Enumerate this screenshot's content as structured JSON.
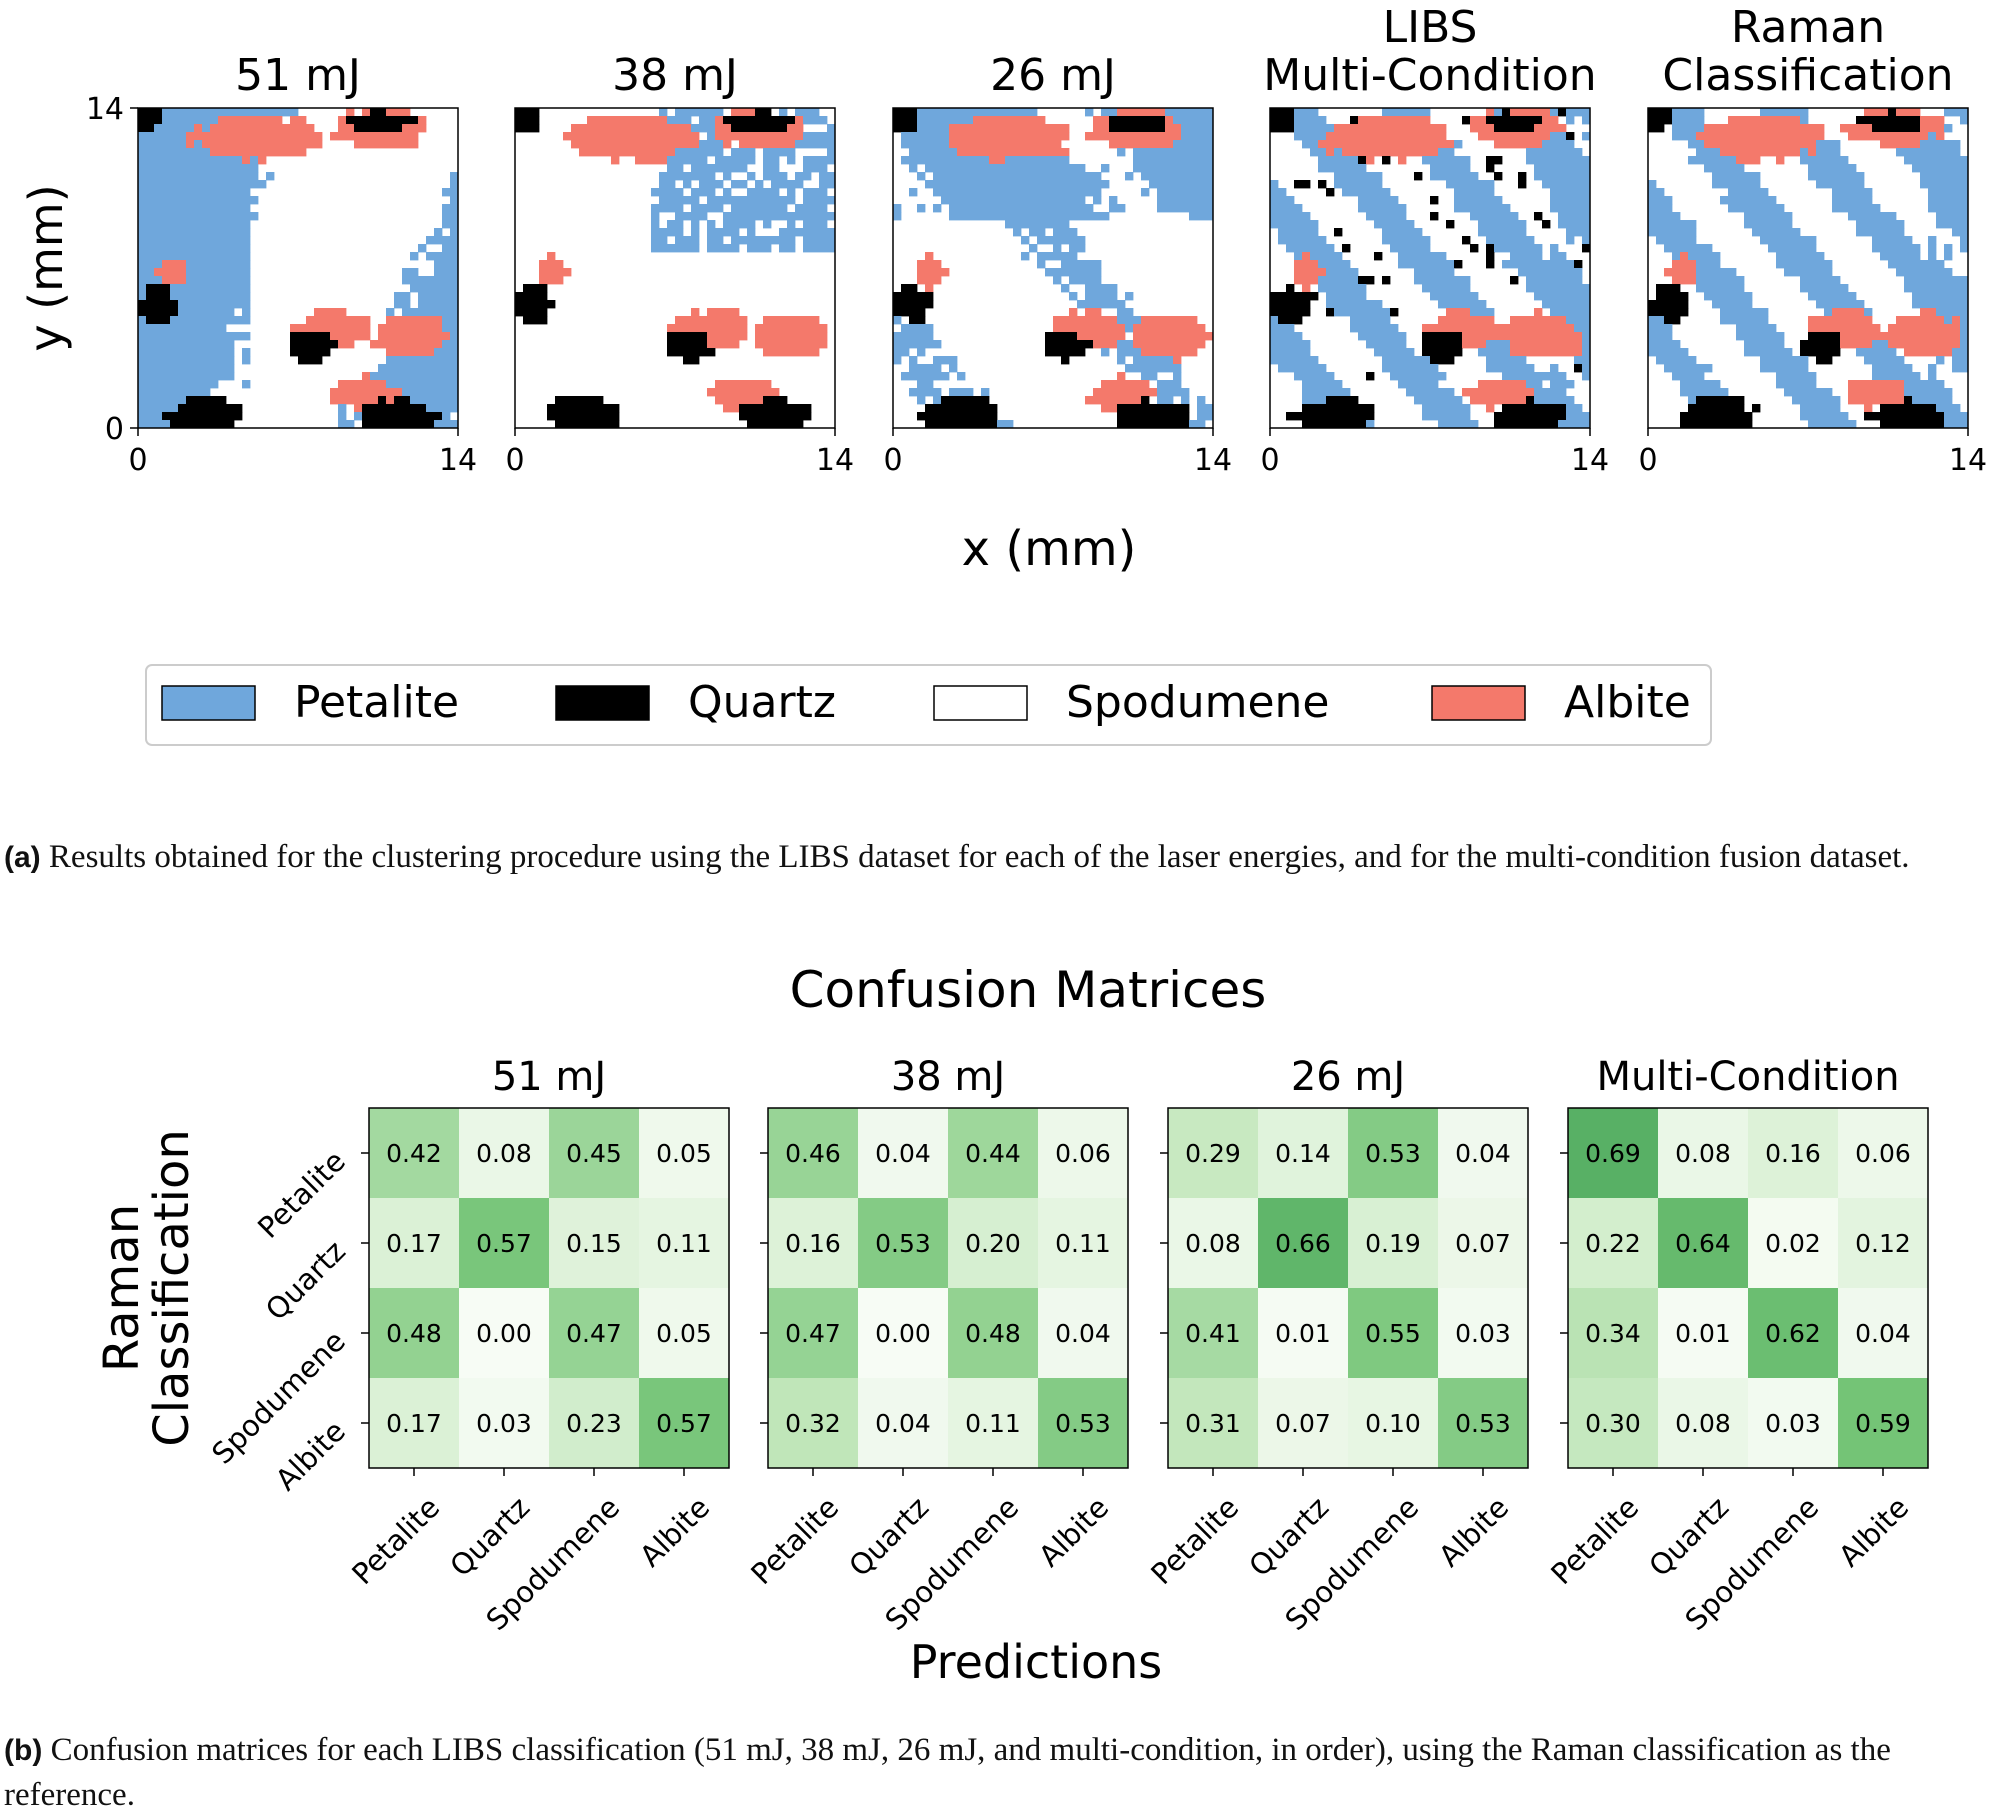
{
  "panel_a": {
    "map_titles": [
      "51 mJ",
      "38 mJ",
      "26 mJ",
      "LIBS\nMulti-Condition",
      "Raman\nClassification"
    ],
    "x_axis_label": "x (mm)",
    "y_axis_label": "y (mm)",
    "axis_min": "0",
    "axis_max": "14",
    "legend": [
      {
        "label": "Petalite",
        "color": "#6fa7dc"
      },
      {
        "label": "Quartz",
        "color": "#000000"
      },
      {
        "label": "Spodumene",
        "color": "#ffffff"
      },
      {
        "label": "Albite",
        "color": "#f4796b"
      }
    ],
    "caption_tag": "(a)",
    "caption_text": " Results obtained for the clustering procedure using the LIBS dataset for each of the laser energies, and for the multi-condition fusion dataset."
  },
  "panel_b": {
    "caption_tag": "(b)",
    "caption_text": " Confusion matrices for each LIBS classification (51 mJ, 38 mJ, 26 mJ, and multi-condition, in order), using the Raman classification as the reference."
  },
  "chart_data": {
    "type": "heatmap",
    "title": "Confusion Matrices",
    "xlabel": "Predictions",
    "ylabel": "Raman\nClassification",
    "categories": [
      "Petalite",
      "Quartz",
      "Spodumene",
      "Albite"
    ],
    "colormap": "Greens",
    "value_range": [
      0,
      1
    ],
    "matrices": [
      {
        "title": "51 mJ",
        "values": [
          [
            0.42,
            0.08,
            0.45,
            0.05
          ],
          [
            0.17,
            0.57,
            0.15,
            0.11
          ],
          [
            0.48,
            0.0,
            0.47,
            0.05
          ],
          [
            0.17,
            0.03,
            0.23,
            0.57
          ]
        ]
      },
      {
        "title": "38 mJ",
        "values": [
          [
            0.46,
            0.04,
            0.44,
            0.06
          ],
          [
            0.16,
            0.53,
            0.2,
            0.11
          ],
          [
            0.47,
            0.0,
            0.48,
            0.04
          ],
          [
            0.32,
            0.04,
            0.11,
            0.53
          ]
        ]
      },
      {
        "title": "26 mJ",
        "values": [
          [
            0.29,
            0.14,
            0.53,
            0.04
          ],
          [
            0.08,
            0.66,
            0.19,
            0.07
          ],
          [
            0.41,
            0.01,
            0.55,
            0.03
          ],
          [
            0.31,
            0.07,
            0.1,
            0.53
          ]
        ]
      },
      {
        "title": "Multi-Condition",
        "values": [
          [
            0.69,
            0.08,
            0.16,
            0.06
          ],
          [
            0.22,
            0.64,
            0.02,
            0.12
          ],
          [
            0.34,
            0.01,
            0.62,
            0.04
          ],
          [
            0.3,
            0.08,
            0.03,
            0.59
          ]
        ]
      }
    ]
  }
}
